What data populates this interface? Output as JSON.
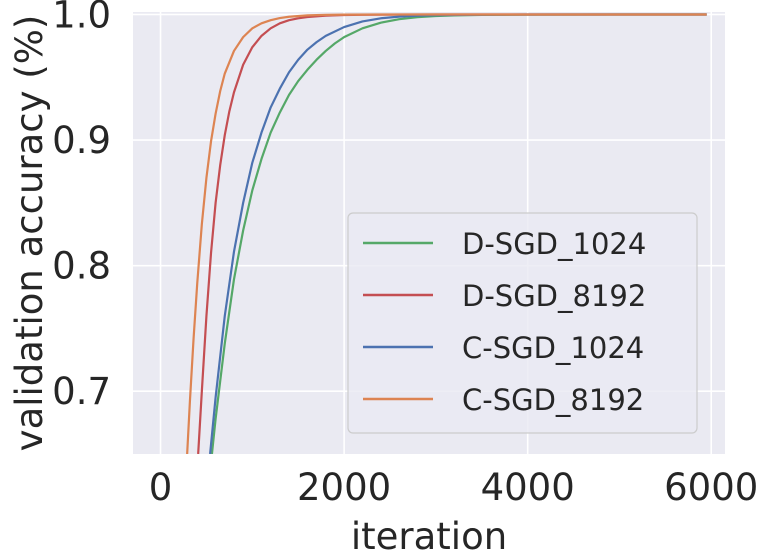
{
  "chart_data": {
    "type": "line",
    "title": "",
    "xlabel": "iteration",
    "ylabel": "validation accuracy (%)",
    "xlim": [
      -300,
      6150
    ],
    "ylim": [
      0.65,
      1.002
    ],
    "x_ticks": [
      0,
      2000,
      4000,
      6000
    ],
    "x_tick_labels": [
      "0",
      "2000",
      "4000",
      "6000"
    ],
    "y_ticks": [
      0.7,
      0.8,
      0.9,
      1.0
    ],
    "y_tick_labels": [
      "0.7",
      "0.8",
      "0.9",
      "1.0"
    ],
    "grid": true,
    "legend_position": "lower-right",
    "series": [
      {
        "name": "D-SGD_1024",
        "color": "#55a868",
        "x": [
          560,
          600,
          700,
          800,
          900,
          1000,
          1100,
          1200,
          1300,
          1400,
          1500,
          1600,
          1700,
          1800,
          1900,
          2000,
          2200,
          2400,
          2600,
          2800,
          3000,
          3200,
          3500,
          4000,
          5000,
          5950
        ],
        "y": [
          0.65,
          0.678,
          0.738,
          0.789,
          0.828,
          0.86,
          0.885,
          0.906,
          0.922,
          0.936,
          0.947,
          0.956,
          0.964,
          0.971,
          0.977,
          0.982,
          0.989,
          0.9935,
          0.9963,
          0.9979,
          0.9988,
          0.9993,
          0.9997,
          0.9999,
          1.0,
          1.0
        ]
      },
      {
        "name": "D-SGD_8192",
        "color": "#c44e52",
        "x": [
          410,
          450,
          500,
          550,
          600,
          650,
          700,
          750,
          800,
          900,
          1000,
          1100,
          1200,
          1300,
          1400,
          1500,
          1600,
          1800,
          2000,
          2200,
          2500,
          3000,
          4000,
          5950
        ],
        "y": [
          0.65,
          0.7,
          0.76,
          0.81,
          0.85,
          0.88,
          0.904,
          0.923,
          0.938,
          0.96,
          0.974,
          0.983,
          0.989,
          0.993,
          0.9955,
          0.997,
          0.998,
          0.9991,
          0.9996,
          0.9998,
          0.9999,
          1.0,
          1.0,
          1.0
        ]
      },
      {
        "name": "C-SGD_1024",
        "color": "#4c72b0",
        "x": [
          540,
          600,
          700,
          800,
          900,
          1000,
          1100,
          1200,
          1300,
          1400,
          1500,
          1600,
          1700,
          1800,
          2000,
          2200,
          2400,
          2600,
          2800,
          3000,
          3500,
          4000,
          5000,
          5950
        ],
        "y": [
          0.65,
          0.695,
          0.76,
          0.811,
          0.85,
          0.882,
          0.906,
          0.926,
          0.941,
          0.954,
          0.964,
          0.972,
          0.978,
          0.983,
          0.99,
          0.9945,
          0.997,
          0.9983,
          0.9991,
          0.9995,
          0.9999,
          1.0,
          1.0,
          1.0
        ]
      },
      {
        "name": "C-SGD_8192",
        "color": "#dd8452",
        "x": [
          290,
          320,
          360,
          400,
          450,
          500,
          550,
          600,
          650,
          700,
          800,
          900,
          1000,
          1100,
          1200,
          1300,
          1400,
          1600,
          1800,
          2000,
          2500,
          3000,
          4000,
          5950
        ],
        "y": [
          0.65,
          0.692,
          0.742,
          0.786,
          0.833,
          0.87,
          0.899,
          0.921,
          0.939,
          0.953,
          0.971,
          0.982,
          0.989,
          0.993,
          0.9955,
          0.9972,
          0.9982,
          0.9993,
          0.9997,
          0.9999,
          1.0,
          1.0,
          1.0,
          1.0
        ]
      }
    ]
  },
  "style": {
    "plot_background": "#eaeaf2",
    "grid_color": "#ffffff",
    "text_color": "#262626",
    "legend_background": "#eaeaf2",
    "legend_border": "#cccccc"
  }
}
